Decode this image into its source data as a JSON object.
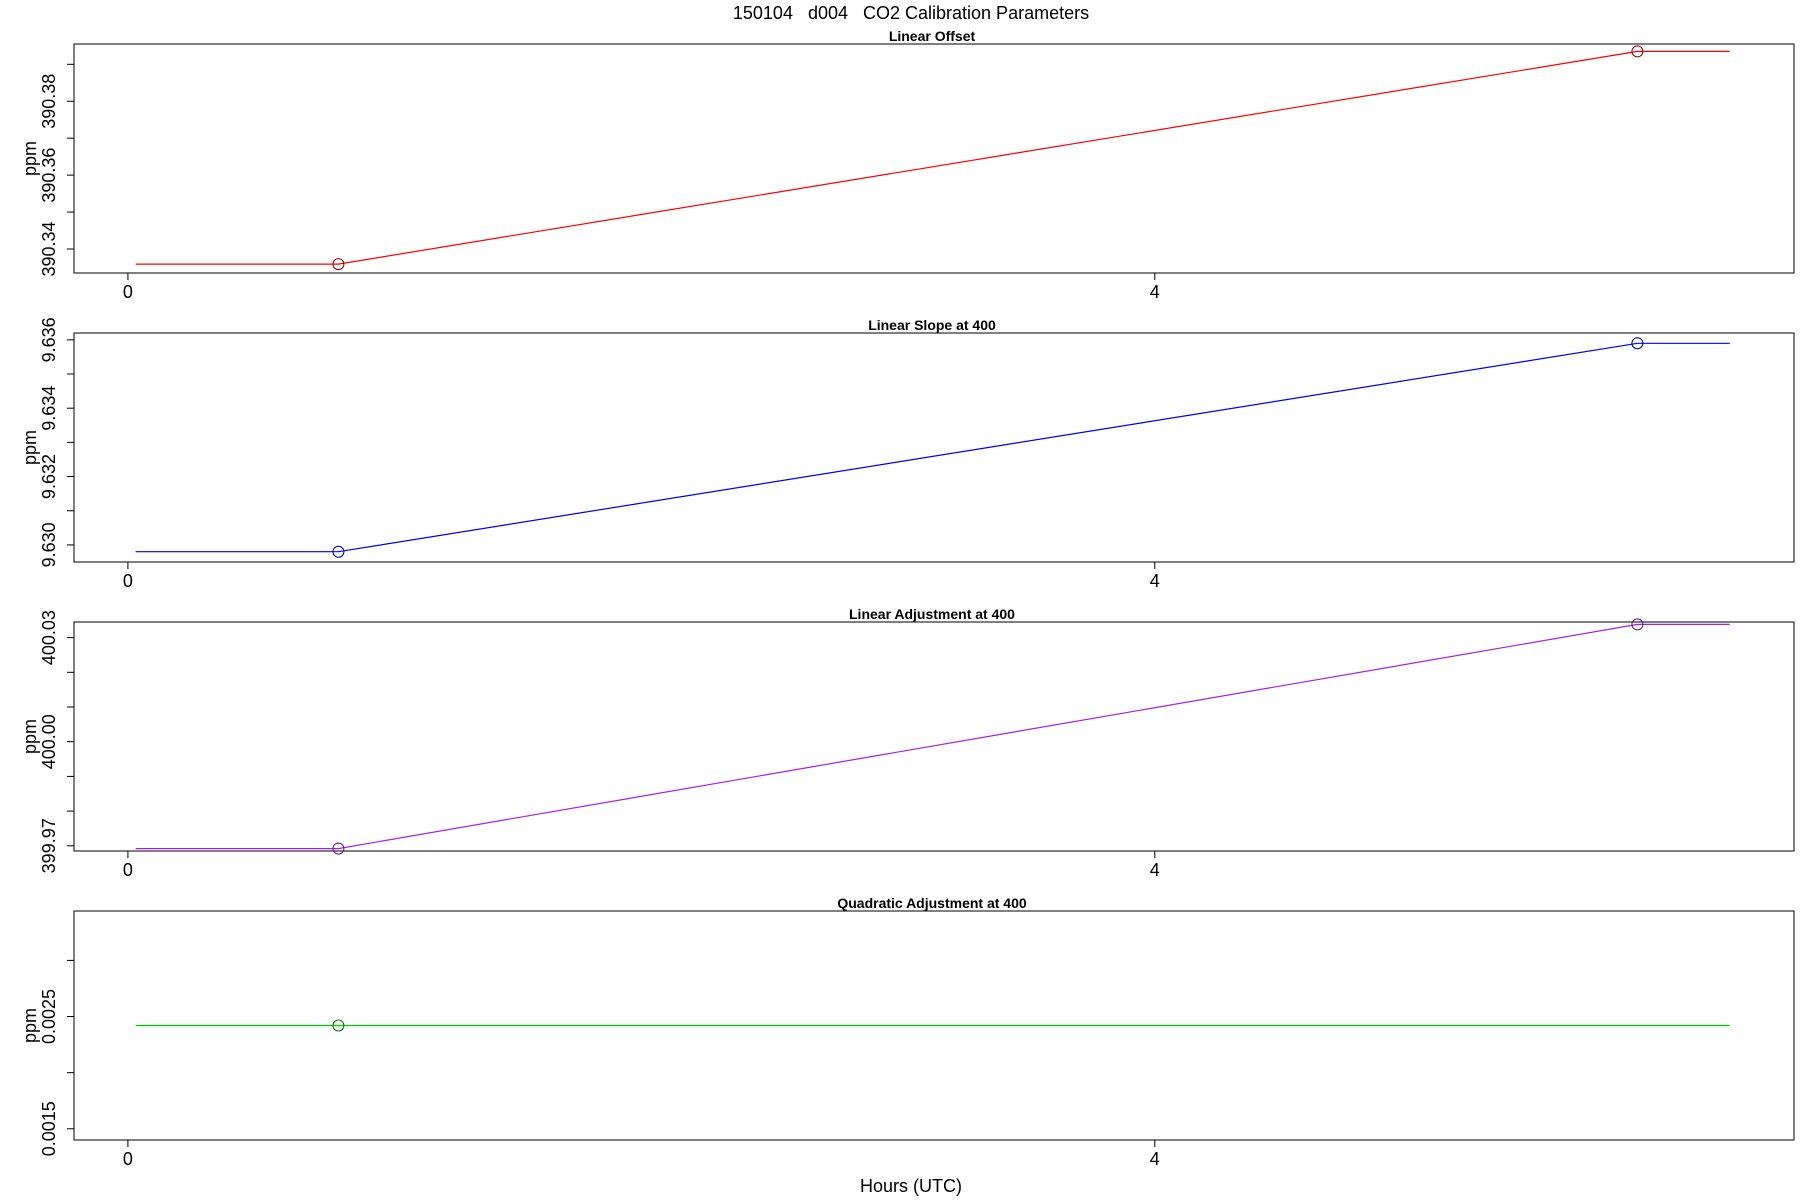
{
  "figure": {
    "title": "150104   d004   CO2 Calibration Parameters",
    "xlabel": "Hours (UTC)"
  },
  "chart_data": [
    {
      "type": "line",
      "title": "Linear Offset",
      "xlabel": "",
      "ylabel": "ppm",
      "xlim": [
        -0.21,
        6.49
      ],
      "ylim": [
        390.3335,
        390.3955
      ],
      "xticks": [
        0,
        4
      ],
      "xtick_labels": [
        "0",
        "4"
      ],
      "yticks": [
        390.34,
        390.35,
        390.36,
        390.37,
        390.38,
        390.39
      ],
      "ytick_labels": [
        "390.34",
        "",
        "390.36",
        "",
        "390.38",
        ""
      ],
      "color": "#ff0000",
      "x": [
        0.03,
        0.82,
        5.88,
        6.24
      ],
      "y": [
        390.3359,
        390.3359,
        390.3935,
        390.3935
      ],
      "markers": [
        {
          "x": 0.82,
          "y": 390.3359
        },
        {
          "x": 5.88,
          "y": 390.3935
        }
      ]
    },
    {
      "type": "line",
      "title": "Linear Slope at 400",
      "xlabel": "",
      "ylabel": "ppm",
      "xlim": [
        -0.21,
        6.49
      ],
      "ylim": [
        9.6295,
        9.6362
      ],
      "xticks": [
        0,
        4
      ],
      "xtick_labels": [
        "0",
        "4"
      ],
      "yticks": [
        9.63,
        9.631,
        9.632,
        9.633,
        9.634,
        9.635,
        9.636
      ],
      "ytick_labels": [
        "9.630",
        "",
        "9.632",
        "",
        "9.634",
        "",
        "9.636"
      ],
      "color": "#0000ff",
      "x": [
        0.03,
        0.82,
        5.88,
        6.24
      ],
      "y": [
        9.6298,
        9.6298,
        9.6359,
        9.6359
      ],
      "markers": [
        {
          "x": 0.82,
          "y": 9.6298
        },
        {
          "x": 5.88,
          "y": 9.6359
        }
      ]
    },
    {
      "type": "line",
      "title": "Linear Adjustment at 400",
      "xlabel": "",
      "ylabel": "ppm",
      "xlim": [
        -0.21,
        6.49
      ],
      "ylim": [
        399.9685,
        400.0345
      ],
      "xticks": [
        0,
        4
      ],
      "xtick_labels": [
        "0",
        "4"
      ],
      "yticks": [
        399.97,
        399.98,
        399.99,
        400.0,
        400.01,
        400.02,
        400.03
      ],
      "ytick_labels": [
        "399.97",
        "",
        "",
        "400.00",
        "",
        "",
        "400.03"
      ],
      "color": "#a020f0",
      "x": [
        0.03,
        0.82,
        5.88,
        6.24
      ],
      "y": [
        399.9692,
        399.9692,
        400.0338,
        400.0338
      ],
      "markers": [
        {
          "x": 0.82,
          "y": 399.9692
        },
        {
          "x": 5.88,
          "y": 400.0338
        }
      ]
    },
    {
      "type": "line",
      "title": "Quadratic Adjustment at 400",
      "xlabel": "",
      "ylabel": "ppm",
      "xlim": [
        -0.21,
        6.49
      ],
      "ylim": [
        0.0014,
        0.00344
      ],
      "xticks": [
        0,
        4
      ],
      "xtick_labels": [
        "0",
        "4"
      ],
      "yticks": [
        0.0015,
        0.002,
        0.0025,
        0.003
      ],
      "ytick_labels": [
        "0.0015",
        "",
        "0.0025",
        ""
      ],
      "color": "#00cd00",
      "x": [
        0.03,
        6.24
      ],
      "y": [
        0.00242,
        0.00242
      ],
      "markers": [
        {
          "x": 0.82,
          "y": 0.00242
        }
      ]
    }
  ]
}
